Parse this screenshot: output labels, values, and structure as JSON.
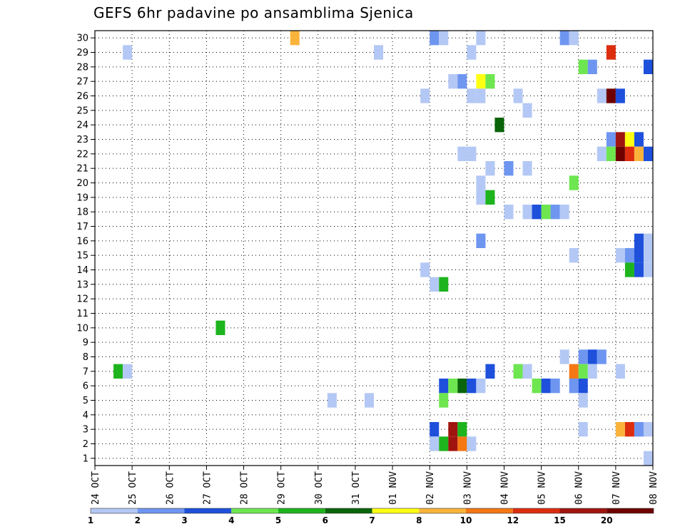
{
  "chart_data": {
    "type": "heatmap",
    "title": "GEFS 6hr padavine po ansamblima Sjenica",
    "xlabel": "",
    "ylabel": "",
    "x_tick_labels": [
      "24 OCT",
      "25 OCT",
      "26 OCT",
      "27 OCT",
      "28 OCT",
      "29 OCT",
      "30 OCT",
      "31 OCT",
      "01 NOV",
      "02 NOV",
      "03 NOV",
      "04 NOV",
      "05 NOV",
      "06 NOV",
      "07 NOV",
      "08 NOV"
    ],
    "y_tick_labels": [
      "1",
      "2",
      "3",
      "4",
      "5",
      "6",
      "7",
      "8",
      "9",
      "10",
      "11",
      "12",
      "13",
      "14",
      "15",
      "16",
      "17",
      "18",
      "19",
      "20",
      "21",
      "22",
      "23",
      "24",
      "25",
      "26",
      "27",
      "28",
      "29",
      "30"
    ],
    "xlim": [
      0,
      60
    ],
    "ylim": [
      0.5,
      30.5
    ],
    "x_unit": "6-hour step from 24 OCT 00Z",
    "grid": true,
    "colorbar": {
      "tick_labels": [
        "1",
        "2",
        "3",
        "4",
        "5",
        "6",
        "7",
        "8",
        "10",
        "12",
        "15",
        "20"
      ],
      "colors": [
        "#b4c8f5",
        "#6e96f0",
        "#1e50dc",
        "#6ee650",
        "#1eb41e",
        "#0a640a",
        "#ffff14",
        "#fab43c",
        "#f57814",
        "#dc2d0f",
        "#a0140f",
        "#6e0000"
      ]
    },
    "cells": [
      [
        3,
        7,
        5
      ],
      [
        4,
        7,
        1
      ],
      [
        4,
        29,
        1
      ],
      [
        14,
        10,
        5
      ],
      [
        22,
        30,
        8
      ],
      [
        26,
        5,
        1
      ],
      [
        30,
        5,
        1
      ],
      [
        31,
        29,
        1
      ],
      [
        36,
        14,
        1
      ],
      [
        36,
        26,
        1
      ],
      [
        37,
        30,
        2
      ],
      [
        37,
        13,
        1
      ],
      [
        37,
        3,
        3
      ],
      [
        37,
        2,
        1
      ],
      [
        38,
        30,
        1
      ],
      [
        38,
        13,
        5
      ],
      [
        38,
        6,
        3
      ],
      [
        38,
        2,
        5
      ],
      [
        38,
        5,
        4
      ],
      [
        39,
        6,
        4
      ],
      [
        39,
        2,
        11
      ],
      [
        39,
        3,
        11
      ],
      [
        39,
        27,
        1
      ],
      [
        40,
        6,
        6
      ],
      [
        40,
        2,
        9
      ],
      [
        40,
        3,
        5
      ],
      [
        40,
        22,
        1
      ],
      [
        40,
        27,
        2
      ],
      [
        41,
        6,
        3
      ],
      [
        41,
        2,
        1
      ],
      [
        41,
        22,
        1
      ],
      [
        41,
        26,
        1
      ],
      [
        41,
        29,
        1
      ],
      [
        42,
        30,
        1
      ],
      [
        42,
        27,
        7
      ],
      [
        42,
        26,
        1
      ],
      [
        42,
        20,
        1
      ],
      [
        42,
        19,
        1
      ],
      [
        42,
        16,
        2
      ],
      [
        42,
        6,
        1
      ],
      [
        43,
        27,
        4
      ],
      [
        43,
        19,
        5
      ],
      [
        43,
        21,
        1
      ],
      [
        43,
        7,
        3
      ],
      [
        44,
        24,
        6
      ],
      [
        45,
        21,
        2
      ],
      [
        45,
        18,
        1
      ],
      [
        46,
        26,
        1
      ],
      [
        46,
        7,
        4
      ],
      [
        47,
        7,
        1
      ],
      [
        47,
        21,
        1
      ],
      [
        47,
        25,
        1
      ],
      [
        47,
        18,
        1
      ],
      [
        48,
        18,
        3
      ],
      [
        48,
        6,
        4
      ],
      [
        49,
        18,
        4
      ],
      [
        49,
        6,
        3
      ],
      [
        50,
        18,
        2
      ],
      [
        50,
        6,
        2
      ],
      [
        51,
        18,
        1
      ],
      [
        51,
        30,
        2
      ],
      [
        51,
        8,
        1
      ],
      [
        52,
        30,
        1
      ],
      [
        52,
        20,
        4
      ],
      [
        52,
        15,
        1
      ],
      [
        52,
        7,
        9
      ],
      [
        52,
        6,
        2
      ],
      [
        53,
        28,
        4
      ],
      [
        53,
        8,
        2
      ],
      [
        53,
        7,
        4
      ],
      [
        53,
        6,
        3
      ],
      [
        53,
        5,
        1
      ],
      [
        53,
        3,
        1
      ],
      [
        54,
        28,
        2
      ],
      [
        54,
        8,
        3
      ],
      [
        54,
        7,
        1
      ],
      [
        55,
        8,
        2
      ],
      [
        55,
        26,
        1
      ],
      [
        55,
        22,
        1
      ],
      [
        56,
        29,
        10
      ],
      [
        56,
        26,
        12
      ],
      [
        56,
        23,
        2
      ],
      [
        56,
        22,
        4
      ],
      [
        57,
        26,
        3
      ],
      [
        57,
        23,
        11
      ],
      [
        57,
        22,
        12
      ],
      [
        57,
        15,
        1
      ],
      [
        57,
        7,
        1
      ],
      [
        57,
        3,
        8
      ],
      [
        58,
        23,
        7
      ],
      [
        58,
        22,
        10
      ],
      [
        58,
        15,
        2
      ],
      [
        58,
        14,
        5
      ],
      [
        58,
        3,
        10
      ],
      [
        59,
        23,
        3
      ],
      [
        59,
        22,
        8
      ],
      [
        59,
        16,
        3
      ],
      [
        59,
        15,
        3
      ],
      [
        59,
        14,
        3
      ],
      [
        59,
        3,
        2
      ],
      [
        60,
        28,
        3
      ],
      [
        60,
        22,
        3
      ],
      [
        60,
        16,
        1
      ],
      [
        60,
        15,
        1
      ],
      [
        60,
        14,
        1
      ],
      [
        60,
        3,
        1
      ],
      [
        60,
        1,
        1
      ]
    ]
  }
}
